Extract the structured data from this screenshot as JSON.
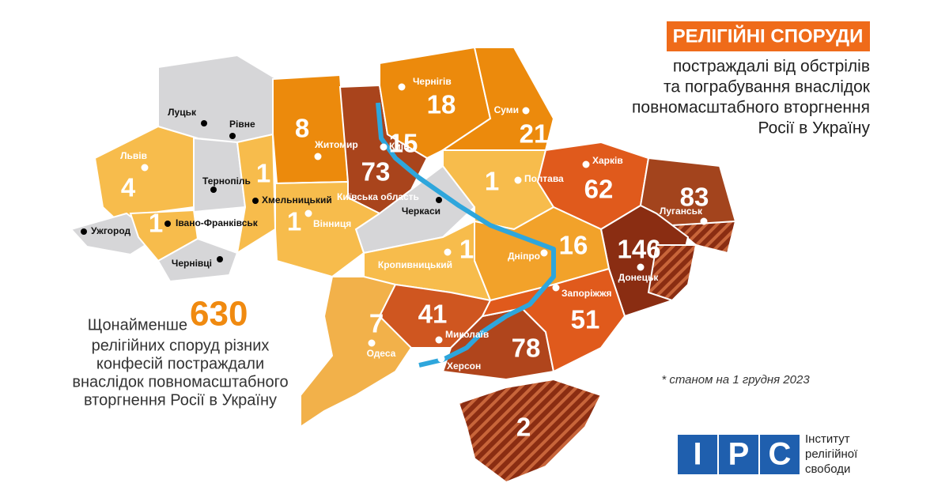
{
  "header": {
    "title": "РЕЛІГІЙНІ СПОРУДИ",
    "subtitle": [
      "постраждалі від обстрілів",
      "та пограбування внаслідок",
      "повномасштабного вторгнення",
      "Росії в Україну"
    ]
  },
  "summary": {
    "prefix": "Щонайменше",
    "total": "630",
    "lines": [
      "релігійних споруд різних",
      "конфесій постраждали",
      "внаслідок повномасштабного",
      "вторгнення Росії в Україну"
    ]
  },
  "footnote": "* станом на 1 грудня 2023",
  "logo": {
    "letters": [
      "І",
      "Р",
      "С"
    ],
    "lines": [
      "Інститут",
      "релігійної",
      "свободи"
    ]
  },
  "regions": [
    {
      "city": "Луцьк",
      "dot": "black"
    },
    {
      "city": "Рівне",
      "dot": "black"
    },
    {
      "city": "Ужгород",
      "dot": "black"
    },
    {
      "city": "Тернопіль",
      "dot": "black"
    },
    {
      "city": "Хмельницький",
      "dot": "black"
    },
    {
      "city": "Черкаси",
      "dot": "black"
    },
    {
      "city": "Чернівці",
      "dot": "black"
    },
    {
      "city": "Львів",
      "count": 4,
      "dot": "white"
    },
    {
      "city": "Івано-Франківськ",
      "count": 1,
      "dot": "black"
    },
    {
      "city": "Житомир",
      "count": 8,
      "dot": "white"
    },
    {
      "city": "Київ",
      "count": 15,
      "dot": "white"
    },
    {
      "city": "Київська область",
      "count": 73
    },
    {
      "city": "Чернігів",
      "count": 18,
      "dot": "white"
    },
    {
      "city": "Суми",
      "count": 21,
      "dot": "white"
    },
    {
      "city": "Полтава",
      "count": 1,
      "dot": "white"
    },
    {
      "city": "Харків",
      "count": 62,
      "dot": "white"
    },
    {
      "city": "Луганськ",
      "count": 83,
      "dot": "white"
    },
    {
      "city": "Донецьк",
      "count": 146,
      "dot": "white"
    },
    {
      "city": "Дніпро",
      "count": 16,
      "dot": "white"
    },
    {
      "city": "Запоріжжя",
      "count": 51,
      "dot": "white"
    },
    {
      "city": "Херсон",
      "count": 78,
      "dot": "white"
    },
    {
      "city": "Миколаїв",
      "count": 41,
      "dot": "white"
    },
    {
      "city": "Кропивницький",
      "count": 1,
      "dot": "white"
    },
    {
      "city": "Одеса",
      "count": 7,
      "dot": "white"
    },
    {
      "city": "Вінниця",
      "count": 1,
      "dot": "white"
    },
    {
      "count": 1
    },
    {
      "count": 2
    }
  ]
}
